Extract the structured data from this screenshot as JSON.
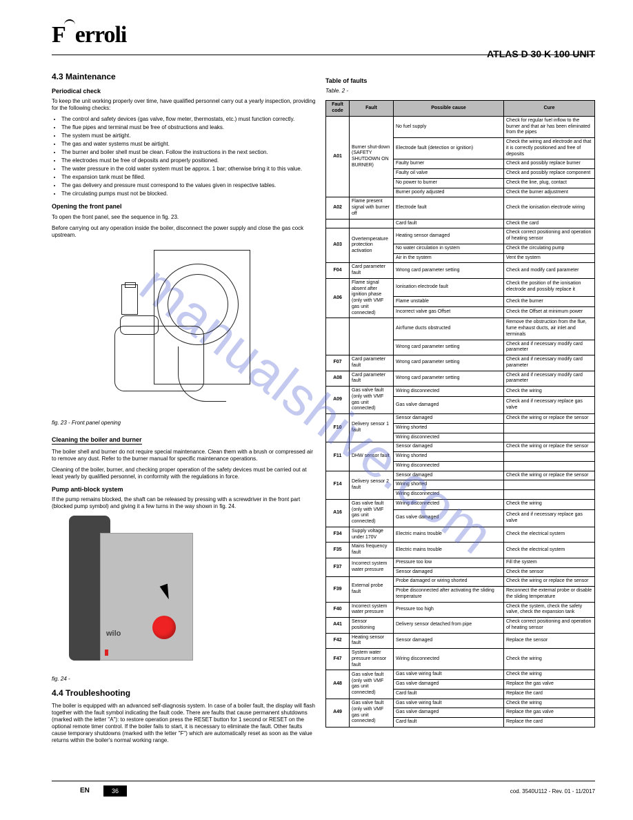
{
  "header": {
    "brand": "Ferroli",
    "product": "ATLAS D 30 K 100 UNIT"
  },
  "watermark": "manualshive.com",
  "left": {
    "section_num": "4.3",
    "section_title": "Maintenance",
    "periodic_title": "Periodical check",
    "periodic_intro": "To keep the unit working properly over time, have qualified personnel carry out a yearly inspection, providing for the following checks:",
    "periodic_items": [
      "The control and safety devices (gas valve, flow meter, thermostats, etc.) must function correctly.",
      "The flue pipes and terminal must be free of obstructions and leaks.",
      "The system must be airtight.",
      "The gas and water systems must be airtight.",
      "The burner and boiler shell must be clean. Follow the instructions in the next section.",
      "The electrodes must be free of deposits and properly positioned.",
      "The water pressure in the cold water system must be approx. 1 bar; otherwise bring it to this value.",
      "The expansion tank must be filled.",
      "The gas delivery and pressure must correspond to the values given in respective tables.",
      "The circulating pumps must not be blocked."
    ],
    "open_title": "Opening the front panel",
    "open_text": "To open the front panel, see the sequence in fig. 23.",
    "open_warn": "Before carrying out any operation inside the boiler, disconnect the power supply and close the gas cock upstream.",
    "fig23": "fig. 23 - Front panel opening",
    "clean_title": "Cleaning the boiler and burner",
    "clean_text1": "The boiler shell and burner do not require special maintenance. Clean them with a brush or compressed air to remove any dust. Refer to the burner manual for specific maintenance operations.",
    "clean_text2": "Cleaning of the boiler, burner, and checking proper operation of the safety devices must be carried out at least yearly by qualified personnel, in conformity with the regulations in force.",
    "pump_title": "Pump anti-block system",
    "pump_text": "If the pump remains blocked, the shaft can be released by pressing with a screwdriver in the front part (blocked pump symbol) and giving it a few turns in the way shown in fig. 24.",
    "fig24": "fig. 24 -",
    "pump_brand": "wilo",
    "ts_num": "4.4",
    "ts_title": "Troubleshooting",
    "ts_text": "The boiler is equipped with an advanced self-diagnosis system. In case of a boiler fault, the display will flash together with the fault symbol indicating the fault code. There are faults that cause permanent shutdowns (marked with the letter \"A\"): to restore operation press the RESET button for 1 second or RESET on the optional remote timer control. If the boiler fails to start, it is necessary to eliminate the fault. Other faults cause temporary shutdowns (marked with the letter \"F\") which are automatically reset as soon as the value returns within the boiler's normal working range."
  },
  "table": {
    "title": "Table of faults",
    "table_no": "Table. 2 -",
    "headers": [
      "Fault code",
      "Fault",
      "Possible cause",
      "Cure"
    ],
    "rows": [
      {
        "code": "A01",
        "fault": "Burner shut-down (SAFETY SHUTDOWN ON BURNER)",
        "spans": 6,
        "cells": [
          [
            "No fuel supply",
            "Check for regular fuel inflow to the burner and that air has been eliminated from the pipes"
          ],
          [
            "Electrode fault (detection or ignition)",
            "Check the wiring and electrode and that it is correctly positioned and free of deposits"
          ],
          [
            "Faulty burner",
            "Check and possibly replace burner"
          ],
          [
            "Faulty oil valve",
            "Check and possibly replace component"
          ],
          [
            "No power to burner",
            "Check the line, plug, contact"
          ],
          [
            "Burner poorly adjusted",
            "Check the burner adjustment"
          ]
        ]
      },
      {
        "code": "A02",
        "fault": "Flame present signal with burner off",
        "spans": 1,
        "cells": [
          [
            "Electrode fault",
            "Check the ionisation electrode wiring"
          ]
        ]
      },
      {
        "code": "",
        "fault": "",
        "spans": 1,
        "cells": [
          [
            "Card fault",
            "Check the card"
          ]
        ]
      },
      {
        "code": "A03",
        "fault": "Overtemperature protection activation",
        "spans": 3,
        "cells": [
          [
            "Heating sensor damaged",
            "Check correct positioning and operation of heating sensor"
          ],
          [
            "No water circulation in system",
            "Check the circulating pump"
          ],
          [
            "Air in the system",
            "Vent the system"
          ]
        ]
      },
      {
        "code": "F04",
        "fault": "Card parameter fault",
        "spans": 1,
        "cells": [
          [
            "Wrong card parameter setting",
            "Check and modify card parameter"
          ]
        ]
      },
      {
        "code": "A06",
        "fault": "Flame signal absent after ignition phase (only with VMF gas unit connected)",
        "spans": 3,
        "cells": [
          [
            "Ionisation electrode fault",
            "Check the position of the ionisation electrode and possibly replace it"
          ],
          [
            "Flame unstable",
            "Check the burner"
          ],
          [
            "Incorrect valve gas Offset",
            "Check the Offset at minimum power"
          ]
        ]
      },
      {
        "code": "",
        "fault": "",
        "spans": 2,
        "cells": [
          [
            "Air/fume ducts obstructed",
            "Remove the obstruction from the flue, fume exhaust ducts, air inlet and terminals"
          ],
          [
            "Wrong card parameter setting",
            "Check and if necessary modify card parameter"
          ]
        ]
      },
      {
        "code": "F07",
        "fault": "Card parameter fault",
        "spans": 1,
        "cells": [
          [
            "Wrong card parameter setting",
            "Check and if necessary modify card parameter"
          ]
        ]
      },
      {
        "code": "A08",
        "fault": "Card parameter fault",
        "spans": 1,
        "cells": [
          [
            "Wrong card parameter setting",
            "Check and if necessary modify card parameter"
          ]
        ]
      },
      {
        "code": "A09",
        "fault": "Gas valve fault (only with VMF gas unit connected)",
        "spans": 2,
        "cells": [
          [
            "Wiring disconnected",
            "Check the wiring"
          ],
          [
            "Gas valve damaged",
            "Check and if necessary replace gas valve"
          ]
        ]
      },
      {
        "code": "F10",
        "fault": "Delivery sensor 1 fault",
        "spans": 3,
        "cells": [
          [
            "Sensor damaged",
            "Check the wiring or replace the sensor"
          ],
          [
            "Wiring shorted",
            ""
          ],
          [
            "Wiring disconnected",
            ""
          ]
        ]
      },
      {
        "code": "F11",
        "fault": "DHW sensor fault",
        "spans": 3,
        "cells": [
          [
            "Sensor damaged",
            "Check the wiring or replace the sensor"
          ],
          [
            "Wiring shorted",
            ""
          ],
          [
            "Wiring disconnected",
            ""
          ]
        ]
      },
      {
        "code": "F14",
        "fault": "Delivery sensor 2 fault",
        "spans": 3,
        "cells": [
          [
            "Sensor damaged",
            "Check the wiring or replace the sensor"
          ],
          [
            "Wiring shorted",
            ""
          ],
          [
            "Wiring disconnected",
            ""
          ]
        ]
      },
      {
        "code": "A16",
        "fault": "Gas valve fault (only with VMF gas unit connected)",
        "spans": 2,
        "cells": [
          [
            "Wiring disconnected",
            "Check the wiring"
          ],
          [
            "Gas valve damaged",
            "Check and if necessary replace gas valve"
          ]
        ]
      },
      {
        "code": "F34",
        "fault": "Supply voltage under 170V",
        "spans": 1,
        "cells": [
          [
            "Electric mains trouble",
            "Check the electrical system"
          ]
        ]
      },
      {
        "code": "F35",
        "fault": "Mains frequency fault",
        "spans": 1,
        "cells": [
          [
            "Electric mains trouble",
            "Check the electrical system"
          ]
        ]
      },
      {
        "code": "F37",
        "fault": "Incorrect system water pressure",
        "spans": 2,
        "cells": [
          [
            "Pressure too low",
            "Fill the system"
          ],
          [
            "Sensor damaged",
            "Check the sensor"
          ]
        ]
      },
      {
        "code": "F39",
        "fault": "External probe fault",
        "spans": 2,
        "cells": [
          [
            "Probe damaged or wiring shorted",
            "Check the wiring or replace the sensor"
          ],
          [
            "Probe disconnected after activating the sliding temperature",
            "Reconnect the external probe or disable the sliding temperature"
          ]
        ]
      },
      {
        "code": "F40",
        "fault": "Incorrect system water pressure",
        "spans": 1,
        "cells": [
          [
            "Pressure too high",
            "Check the system, check the safety valve, check the expansion tank"
          ]
        ]
      },
      {
        "code": "A41",
        "fault": "Sensor positioning",
        "spans": 1,
        "cells": [
          [
            "Delivery sensor detached from pipe",
            "Check correct positioning and operation of heating sensor"
          ]
        ]
      },
      {
        "code": "F42",
        "fault": "Heating sensor fault",
        "spans": 1,
        "cells": [
          [
            "Sensor damaged",
            "Replace the sensor"
          ]
        ]
      },
      {
        "code": "F47",
        "fault": "System water pressure sensor fault",
        "spans": 1,
        "cells": [
          [
            "Wiring disconnected",
            "Check the wiring"
          ]
        ]
      },
      {
        "code": "A48",
        "fault": "Gas valve fault (only with VMF gas unit connected)",
        "spans": 3,
        "cells": [
          [
            "Gas valve wiring fault",
            "Check the wiring"
          ],
          [
            "Gas valve damaged",
            "Replace the gas valve"
          ],
          [
            "Card fault",
            "Replace the card"
          ]
        ]
      },
      {
        "code": "A49",
        "fault": "Gas valve fault (only with VMF gas unit connected)",
        "spans": 3,
        "cells": [
          [
            "Gas valve wiring fault",
            "Check the wiring"
          ],
          [
            "Gas valve damaged",
            "Replace the gas valve"
          ],
          [
            "Card fault",
            "Replace the card"
          ]
        ]
      }
    ]
  },
  "footer": {
    "lang": "EN",
    "page": "36",
    "code": "cod. 3540U112 - Rev. 01 - 11/2017"
  }
}
